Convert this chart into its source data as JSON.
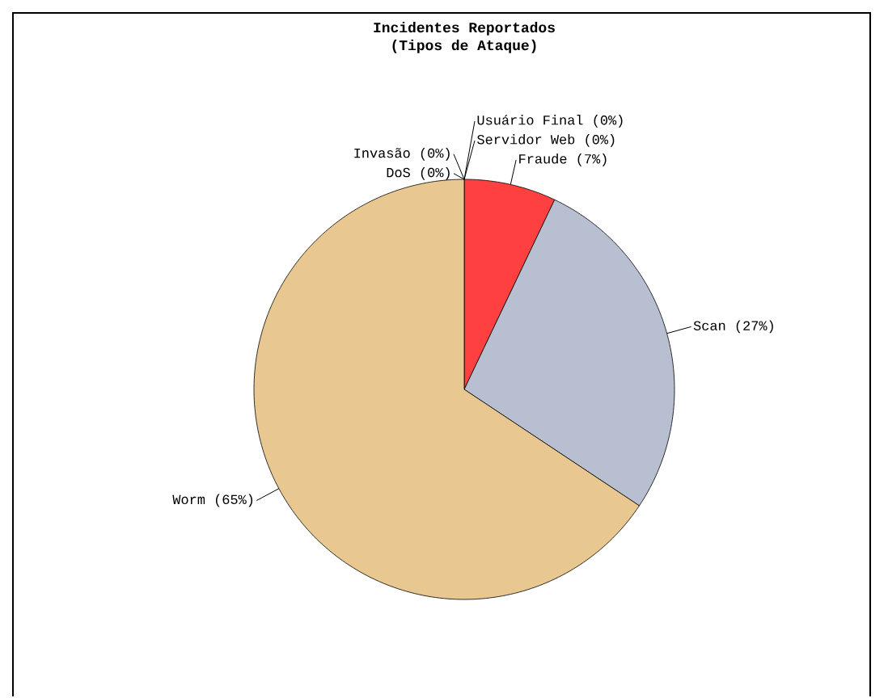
{
  "chart_data": {
    "type": "pie",
    "title": "Incidentes Reportados",
    "subtitle": "(Tipos de Ataque)",
    "categories": [
      "Usuário Final",
      "Servidor Web",
      "Fraude",
      "Scan",
      "Worm",
      "DoS",
      "Invasão"
    ],
    "values": [
      0,
      0,
      7,
      27,
      65,
      0,
      0
    ],
    "value_labels": [
      "(0%)",
      "(0%)",
      "(7%)",
      "(27%)",
      "(65%)",
      "(0%)",
      "(0%)"
    ],
    "colors": [
      "#404040",
      "#808080",
      "#ff4040",
      "#b8bfd0",
      "#e8c890",
      "#101010",
      "#a0a0a0"
    ]
  }
}
